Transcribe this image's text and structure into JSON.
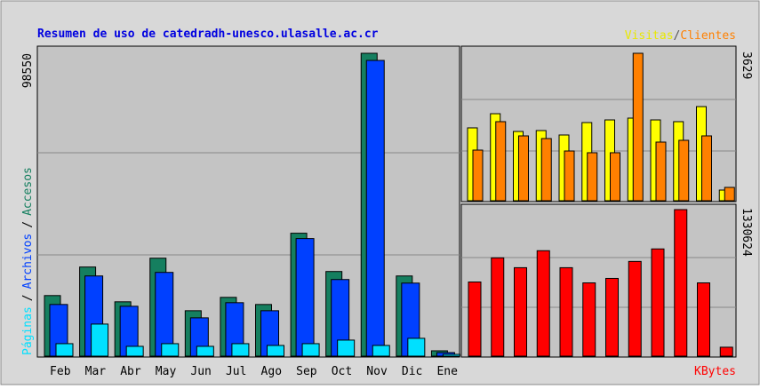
{
  "chart_data": [
    {
      "type": "bar",
      "title": "Resumen de uso de catedradh-unesco.ulasalle.ac.cr",
      "categories": [
        "Feb",
        "Mar",
        "Abr",
        "May",
        "Jun",
        "Jul",
        "Ago",
        "Sep",
        "Oct",
        "Nov",
        "Dic",
        "Ene"
      ],
      "legend_separator": "/",
      "series": [
        {
          "name": "Accesos",
          "color": "#157f5f",
          "values": [
            19710,
            29000,
            17680,
            31880,
            14780,
            19130,
            16810,
            40000,
            27540,
            98550,
            26090,
            1740
          ]
        },
        {
          "name": "Archivos",
          "color": "#0040ff",
          "values": [
            16810,
            26090,
            16230,
            27250,
            12460,
            17390,
            14780,
            38260,
            24930,
            96230,
            23770,
            1160
          ]
        },
        {
          "name": "Páginas",
          "color": "#00e0ff",
          "values": [
            4060,
            10430,
            3190,
            4060,
            3190,
            4060,
            3480,
            4060,
            5220,
            3480,
            5800,
            580
          ]
        }
      ],
      "ylim": [
        0,
        98550
      ],
      "yticks": [
        98550
      ]
    },
    {
      "type": "bar",
      "legend_separator": "/",
      "series": [
        {
          "name": "Visitas",
          "color": "#ffff00",
          "values": [
            1793,
            2142,
            1705,
            1727,
            1618,
            1924,
            1989,
            2033,
            1989,
            1946,
            2317,
            262
          ]
        },
        {
          "name": "Clientes",
          "color": "#ff8000",
          "values": [
            1246,
            1946,
            1596,
            1530,
            1224,
            1181,
            1181,
            3629,
            1443,
            1487,
            1596,
            328
          ]
        }
      ],
      "ylim": [
        0,
        3629
      ],
      "yticks": [
        3629
      ]
    },
    {
      "type": "bar",
      "series": [
        {
          "name": "KBytes",
          "color": "#ff0000",
          "values": [
            673400,
            892500,
            803200,
            957400,
            803200,
            665300,
            705900,
            860000,
            973600,
            1330624,
            665300,
            81100
          ]
        }
      ],
      "ylim": [
        0,
        1330624
      ],
      "yticks": [
        1330624
      ]
    }
  ]
}
